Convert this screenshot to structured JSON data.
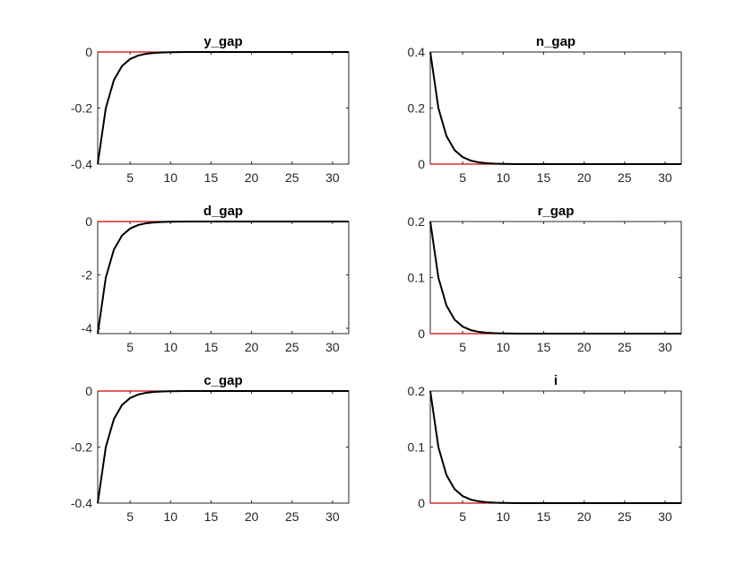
{
  "chart_data": [
    {
      "type": "line",
      "title": "y_gap",
      "xlabel": "",
      "ylabel": "",
      "xlim": [
        1,
        32
      ],
      "ylim": [
        -0.4,
        0
      ],
      "xticks": [
        5,
        10,
        15,
        20,
        25,
        30
      ],
      "yticks": [
        -0.4,
        -0.2,
        0
      ],
      "ytick_labels": [
        "-0.4",
        "-0.2",
        "0"
      ],
      "grid": false,
      "series": [
        {
          "color": "#000000",
          "values": [
            -0.4,
            -0.2,
            -0.1,
            -0.05,
            -0.025,
            -0.0125,
            -0.00625,
            -0.003125,
            -0.0015625,
            -0.00078125,
            -0.000390625,
            -0.0001953125,
            -9.76563e-05,
            -4.88281e-05,
            -2.44141e-05,
            -1.2207e-05,
            0,
            0,
            0,
            0,
            0,
            0,
            0,
            0,
            0,
            0,
            0,
            0,
            0,
            0,
            0,
            0
          ]
        },
        {
          "color": "#cc0000",
          "values": [
            0,
            0,
            0,
            0,
            0,
            0,
            0,
            0,
            0,
            0,
            0,
            0,
            0,
            0,
            0,
            0,
            0,
            0,
            0,
            0,
            0,
            0,
            0,
            0,
            0,
            0,
            0,
            0,
            0,
            0,
            0,
            0
          ]
        }
      ]
    },
    {
      "type": "line",
      "title": "n_gap",
      "xlabel": "",
      "ylabel": "",
      "xlim": [
        1,
        32
      ],
      "ylim": [
        0,
        0.4
      ],
      "xticks": [
        5,
        10,
        15,
        20,
        25,
        30
      ],
      "yticks": [
        0,
        0.2,
        0.4
      ],
      "ytick_labels": [
        "0",
        "0.2",
        "0.4"
      ],
      "grid": false,
      "series": [
        {
          "color": "#000000",
          "values": [
            0.4,
            0.2,
            0.1,
            0.05,
            0.025,
            0.0125,
            0.00625,
            0.003125,
            0.0015625,
            0.00078125,
            0.000390625,
            0.0001953125,
            9.76563e-05,
            4.88281e-05,
            2.44141e-05,
            1.2207e-05,
            0,
            0,
            0,
            0,
            0,
            0,
            0,
            0,
            0,
            0,
            0,
            0,
            0,
            0,
            0,
            0
          ]
        },
        {
          "color": "#cc0000",
          "values": [
            0,
            0,
            0,
            0,
            0,
            0,
            0,
            0,
            0,
            0,
            0,
            0,
            0,
            0,
            0,
            0,
            0,
            0,
            0,
            0,
            0,
            0,
            0,
            0,
            0,
            0,
            0,
            0,
            0,
            0,
            0,
            0
          ]
        }
      ]
    },
    {
      "type": "line",
      "title": "d_gap",
      "xlabel": "",
      "ylabel": "",
      "xlim": [
        1,
        32
      ],
      "ylim": [
        -4.2,
        0
      ],
      "xticks": [
        5,
        10,
        15,
        20,
        25,
        30
      ],
      "yticks": [
        -4,
        -2,
        0
      ],
      "ytick_labels": [
        "-4",
        "-2",
        "0"
      ],
      "grid": false,
      "series": [
        {
          "color": "#000000",
          "values": [
            -4.2,
            -2.1,
            -1.05,
            -0.525,
            -0.2625,
            -0.13125,
            -0.065625,
            -0.0328125,
            -0.01640625,
            -0.008203125,
            -0.0041015625,
            -0.0020507813,
            -0.0010253906,
            -0.0005126953,
            -0.0002563477,
            -0.0001281738,
            0,
            0,
            0,
            0,
            0,
            0,
            0,
            0,
            0,
            0,
            0,
            0,
            0,
            0,
            0,
            0
          ]
        },
        {
          "color": "#cc0000",
          "values": [
            0,
            0,
            0,
            0,
            0,
            0,
            0,
            0,
            0,
            0,
            0,
            0,
            0,
            0,
            0,
            0,
            0,
            0,
            0,
            0,
            0,
            0,
            0,
            0,
            0,
            0,
            0,
            0,
            0,
            0,
            0,
            0
          ]
        }
      ]
    },
    {
      "type": "line",
      "title": "r_gap",
      "xlabel": "",
      "ylabel": "",
      "xlim": [
        1,
        32
      ],
      "ylim": [
        0,
        0.2
      ],
      "xticks": [
        5,
        10,
        15,
        20,
        25,
        30
      ],
      "yticks": [
        0,
        0.1,
        0.2
      ],
      "ytick_labels": [
        "0",
        "0.1",
        "0.2"
      ],
      "grid": false,
      "series": [
        {
          "color": "#000000",
          "values": [
            0.2,
            0.1,
            0.05,
            0.025,
            0.0125,
            0.00625,
            0.003125,
            0.0015625,
            0.00078125,
            0.000390625,
            0.0001953125,
            9.76563e-05,
            4.88281e-05,
            2.44141e-05,
            1.2207e-05,
            6.1035e-06,
            0,
            0,
            0,
            0,
            0,
            0,
            0,
            0,
            0,
            0,
            0,
            0,
            0,
            0,
            0,
            0
          ]
        },
        {
          "color": "#cc0000",
          "values": [
            0,
            0,
            0,
            0,
            0,
            0,
            0,
            0,
            0,
            0,
            0,
            0,
            0,
            0,
            0,
            0,
            0,
            0,
            0,
            0,
            0,
            0,
            0,
            0,
            0,
            0,
            0,
            0,
            0,
            0,
            0,
            0
          ]
        }
      ]
    },
    {
      "type": "line",
      "title": "c_gap",
      "xlabel": "",
      "ylabel": "",
      "xlim": [
        1,
        32
      ],
      "ylim": [
        -0.4,
        0
      ],
      "xticks": [
        5,
        10,
        15,
        20,
        25,
        30
      ],
      "yticks": [
        -0.4,
        -0.2,
        0
      ],
      "ytick_labels": [
        "-0.4",
        "-0.2",
        "0"
      ],
      "grid": false,
      "series": [
        {
          "color": "#000000",
          "values": [
            -0.4,
            -0.2,
            -0.1,
            -0.05,
            -0.025,
            -0.0125,
            -0.00625,
            -0.003125,
            -0.0015625,
            -0.00078125,
            -0.000390625,
            -0.0001953125,
            -9.76563e-05,
            -4.88281e-05,
            -2.44141e-05,
            -1.2207e-05,
            0,
            0,
            0,
            0,
            0,
            0,
            0,
            0,
            0,
            0,
            0,
            0,
            0,
            0,
            0,
            0
          ]
        },
        {
          "color": "#cc0000",
          "values": [
            0,
            0,
            0,
            0,
            0,
            0,
            0,
            0,
            0,
            0,
            0,
            0,
            0,
            0,
            0,
            0,
            0,
            0,
            0,
            0,
            0,
            0,
            0,
            0,
            0,
            0,
            0,
            0,
            0,
            0,
            0,
            0
          ]
        }
      ]
    },
    {
      "type": "line",
      "title": "i",
      "xlabel": "",
      "ylabel": "",
      "xlim": [
        1,
        32
      ],
      "ylim": [
        0,
        0.2
      ],
      "xticks": [
        5,
        10,
        15,
        20,
        25,
        30
      ],
      "yticks": [
        0,
        0.1,
        0.2
      ],
      "ytick_labels": [
        "0",
        "0.1",
        "0.2"
      ],
      "grid": false,
      "series": [
        {
          "color": "#000000",
          "values": [
            0.2,
            0.1,
            0.05,
            0.025,
            0.0125,
            0.00625,
            0.003125,
            0.0015625,
            0.00078125,
            0.000390625,
            0.0001953125,
            9.76563e-05,
            4.88281e-05,
            2.44141e-05,
            1.2207e-05,
            6.1035e-06,
            0,
            0,
            0,
            0,
            0,
            0,
            0,
            0,
            0,
            0,
            0,
            0,
            0,
            0,
            0,
            0
          ]
        },
        {
          "color": "#cc0000",
          "values": [
            0,
            0,
            0,
            0,
            0,
            0,
            0,
            0,
            0,
            0,
            0,
            0,
            0,
            0,
            0,
            0,
            0,
            0,
            0,
            0,
            0,
            0,
            0,
            0,
            0,
            0,
            0,
            0,
            0,
            0,
            0,
            0
          ]
        }
      ]
    }
  ]
}
